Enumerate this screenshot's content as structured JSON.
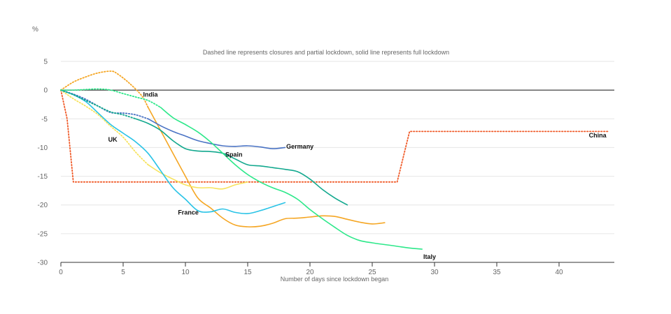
{
  "chart_data": {
    "type": "line",
    "ylabel": "%",
    "subtitle": "Dashed line represents closures and partial lockdown, solid line represents full lockdown",
    "xlabel": "Number of days since lockdown began",
    "xlim": [
      0,
      44
    ],
    "ylim": [
      -30,
      5
    ],
    "xticks": [
      0,
      5,
      10,
      15,
      20,
      25,
      30,
      35,
      40
    ],
    "yticks": [
      5,
      0,
      -5,
      -10,
      -15,
      -20,
      -25,
      -30
    ],
    "grid": true,
    "series": [
      {
        "name": "China",
        "color": "#f05a28",
        "label_at": [
          43.8,
          -7.9
        ],
        "segments": [
          {
            "style": "dashed",
            "points": [
              [
                0,
                0
              ],
              [
                0.5,
                -5
              ],
              [
                1,
                -16
              ],
              [
                27,
                -16
              ],
              [
                28,
                -7.2
              ],
              [
                44,
                -7.2
              ]
            ]
          }
        ]
      },
      {
        "name": "India",
        "color": "#f5a623",
        "label_at": [
          6.6,
          -0.8
        ],
        "segments": [
          {
            "style": "dashed",
            "points": [
              [
                0,
                0
              ],
              [
                1,
                1.4
              ],
              [
                2,
                2.3
              ],
              [
                3,
                3
              ],
              [
                4,
                3.3
              ],
              [
                4.5,
                2.9
              ],
              [
                5.5,
                1.2
              ],
              [
                6.5,
                -1
              ],
              [
                7,
                -3
              ]
            ]
          },
          {
            "style": "solid",
            "points": [
              [
                7,
                -3
              ],
              [
                8,
                -7
              ],
              [
                9,
                -11
              ],
              [
                10,
                -15
              ],
              [
                11,
                -18.8
              ],
              [
                12,
                -20.5
              ],
              [
                13,
                -22.3
              ],
              [
                14,
                -23.5
              ],
              [
                15,
                -23.8
              ],
              [
                16,
                -23.7
              ],
              [
                17,
                -23.2
              ],
              [
                18,
                -22.4
              ],
              [
                19,
                -22.3
              ],
              [
                20,
                -22.1
              ],
              [
                21,
                -21.9
              ],
              [
                22,
                -22
              ],
              [
                23,
                -22.5
              ],
              [
                24,
                -23
              ],
              [
                25,
                -23.3
              ],
              [
                26,
                -23.1
              ]
            ]
          }
        ]
      },
      {
        "name": "UK",
        "color": "#f7e35e",
        "label_at": [
          3.8,
          -8.6
        ],
        "segments": [
          {
            "style": "dashed",
            "points": [
              [
                0,
                0
              ],
              [
                1,
                -1.5
              ],
              [
                2,
                -2.8
              ],
              [
                3,
                -4.3
              ],
              [
                4,
                -6.3
              ],
              [
                5,
                -8.2
              ],
              [
                6,
                -10.8
              ],
              [
                7,
                -13
              ]
            ]
          },
          {
            "style": "solid",
            "points": [
              [
                7,
                -13
              ],
              [
                8,
                -14.4
              ],
              [
                9,
                -15.5
              ],
              [
                10,
                -16.5
              ],
              [
                11,
                -17
              ],
              [
                12,
                -17
              ],
              [
                13,
                -17.2
              ],
              [
                14,
                -16.5
              ],
              [
                15,
                -16
              ]
            ]
          }
        ]
      },
      {
        "name": "France",
        "color": "#29c3e6",
        "label_at": [
          9.4,
          -21.3
        ],
        "segments": [
          {
            "style": "solid",
            "points": [
              [
                0,
                0
              ],
              [
                1,
                -0.8
              ],
              [
                2,
                -2
              ],
              [
                3,
                -4
              ],
              [
                4,
                -6
              ],
              [
                5,
                -7.5
              ],
              [
                6,
                -9
              ],
              [
                7,
                -11
              ],
              [
                8,
                -14
              ],
              [
                9,
                -17
              ],
              [
                10,
                -19
              ],
              [
                11,
                -21
              ],
              [
                12,
                -21.2
              ],
              [
                13,
                -20.7
              ],
              [
                14,
                -21.3
              ],
              [
                15,
                -21.5
              ],
              [
                16,
                -21
              ],
              [
                17,
                -20.3
              ],
              [
                18,
                -19.6
              ]
            ]
          }
        ]
      },
      {
        "name": "Germany",
        "color": "#4a73c4",
        "label_at": [
          18.1,
          -9.8
        ],
        "segments": [
          {
            "style": "dashed",
            "points": [
              [
                0,
                0
              ],
              [
                1,
                -0.7
              ],
              [
                2,
                -1.6
              ],
              [
                3,
                -2.8
              ],
              [
                4,
                -3.9
              ],
              [
                5,
                -4
              ],
              [
                6,
                -4.3
              ],
              [
                7,
                -5
              ]
            ]
          },
          {
            "style": "solid",
            "points": [
              [
                7,
                -5
              ],
              [
                8,
                -6.2
              ],
              [
                9,
                -7.2
              ],
              [
                10,
                -8
              ],
              [
                11,
                -8.8
              ],
              [
                12,
                -9.3
              ],
              [
                13,
                -9.7
              ],
              [
                14,
                -9.8
              ],
              [
                15,
                -9.7
              ],
              [
                16,
                -9.9
              ],
              [
                17,
                -10.2
              ],
              [
                18,
                -10
              ]
            ]
          }
        ]
      },
      {
        "name": "Spain",
        "color": "#12a88e",
        "label_at": [
          13.2,
          -11.2
        ],
        "segments": [
          {
            "style": "dashed",
            "points": [
              [
                0,
                0
              ],
              [
                1,
                -0.8
              ],
              [
                2,
                -1.8
              ],
              [
                3,
                -2.8
              ],
              [
                4,
                -3.8
              ],
              [
                5,
                -4.3
              ],
              [
                6,
                -5
              ]
            ]
          },
          {
            "style": "solid",
            "points": [
              [
                6,
                -5
              ],
              [
                7,
                -5.8
              ],
              [
                8,
                -7
              ],
              [
                9,
                -8.8
              ],
              [
                10,
                -10.2
              ],
              [
                11,
                -10.6
              ],
              [
                12,
                -10.7
              ],
              [
                13,
                -11
              ],
              [
                14,
                -12
              ],
              [
                15,
                -13
              ],
              [
                16,
                -13.2
              ],
              [
                17,
                -13.5
              ],
              [
                18,
                -13.8
              ],
              [
                19,
                -14.2
              ],
              [
                20,
                -15.5
              ],
              [
                21,
                -17.3
              ],
              [
                22,
                -18.8
              ],
              [
                23,
                -20
              ]
            ]
          }
        ]
      },
      {
        "name": "Italy",
        "color": "#2de88a",
        "label_at": [
          29.1,
          -29
        ],
        "segments": [
          {
            "style": "dashed",
            "points": [
              [
                0,
                0
              ],
              [
                1,
                0
              ],
              [
                2,
                0.1
              ],
              [
                3,
                0.2
              ],
              [
                4,
                0
              ],
              [
                5,
                -0.6
              ],
              [
                6,
                -1.2
              ],
              [
                7,
                -1.8
              ],
              [
                8,
                -3
              ]
            ]
          },
          {
            "style": "solid",
            "points": [
              [
                8,
                -3
              ],
              [
                9,
                -4.8
              ],
              [
                10,
                -6
              ],
              [
                11,
                -7.3
              ],
              [
                12,
                -9
              ],
              [
                13,
                -11
              ],
              [
                14,
                -13
              ],
              [
                15,
                -14.7
              ],
              [
                16,
                -16
              ],
              [
                17,
                -17
              ],
              [
                18,
                -17.8
              ],
              [
                19,
                -19
              ],
              [
                20,
                -20.8
              ],
              [
                21,
                -22.4
              ],
              [
                22,
                -23.9
              ],
              [
                23,
                -25.3
              ],
              [
                24,
                -26.2
              ],
              [
                25,
                -26.6
              ],
              [
                26,
                -26.9
              ],
              [
                27,
                -27.2
              ],
              [
                28,
                -27.5
              ],
              [
                29,
                -27.7
              ]
            ]
          }
        ]
      }
    ]
  }
}
